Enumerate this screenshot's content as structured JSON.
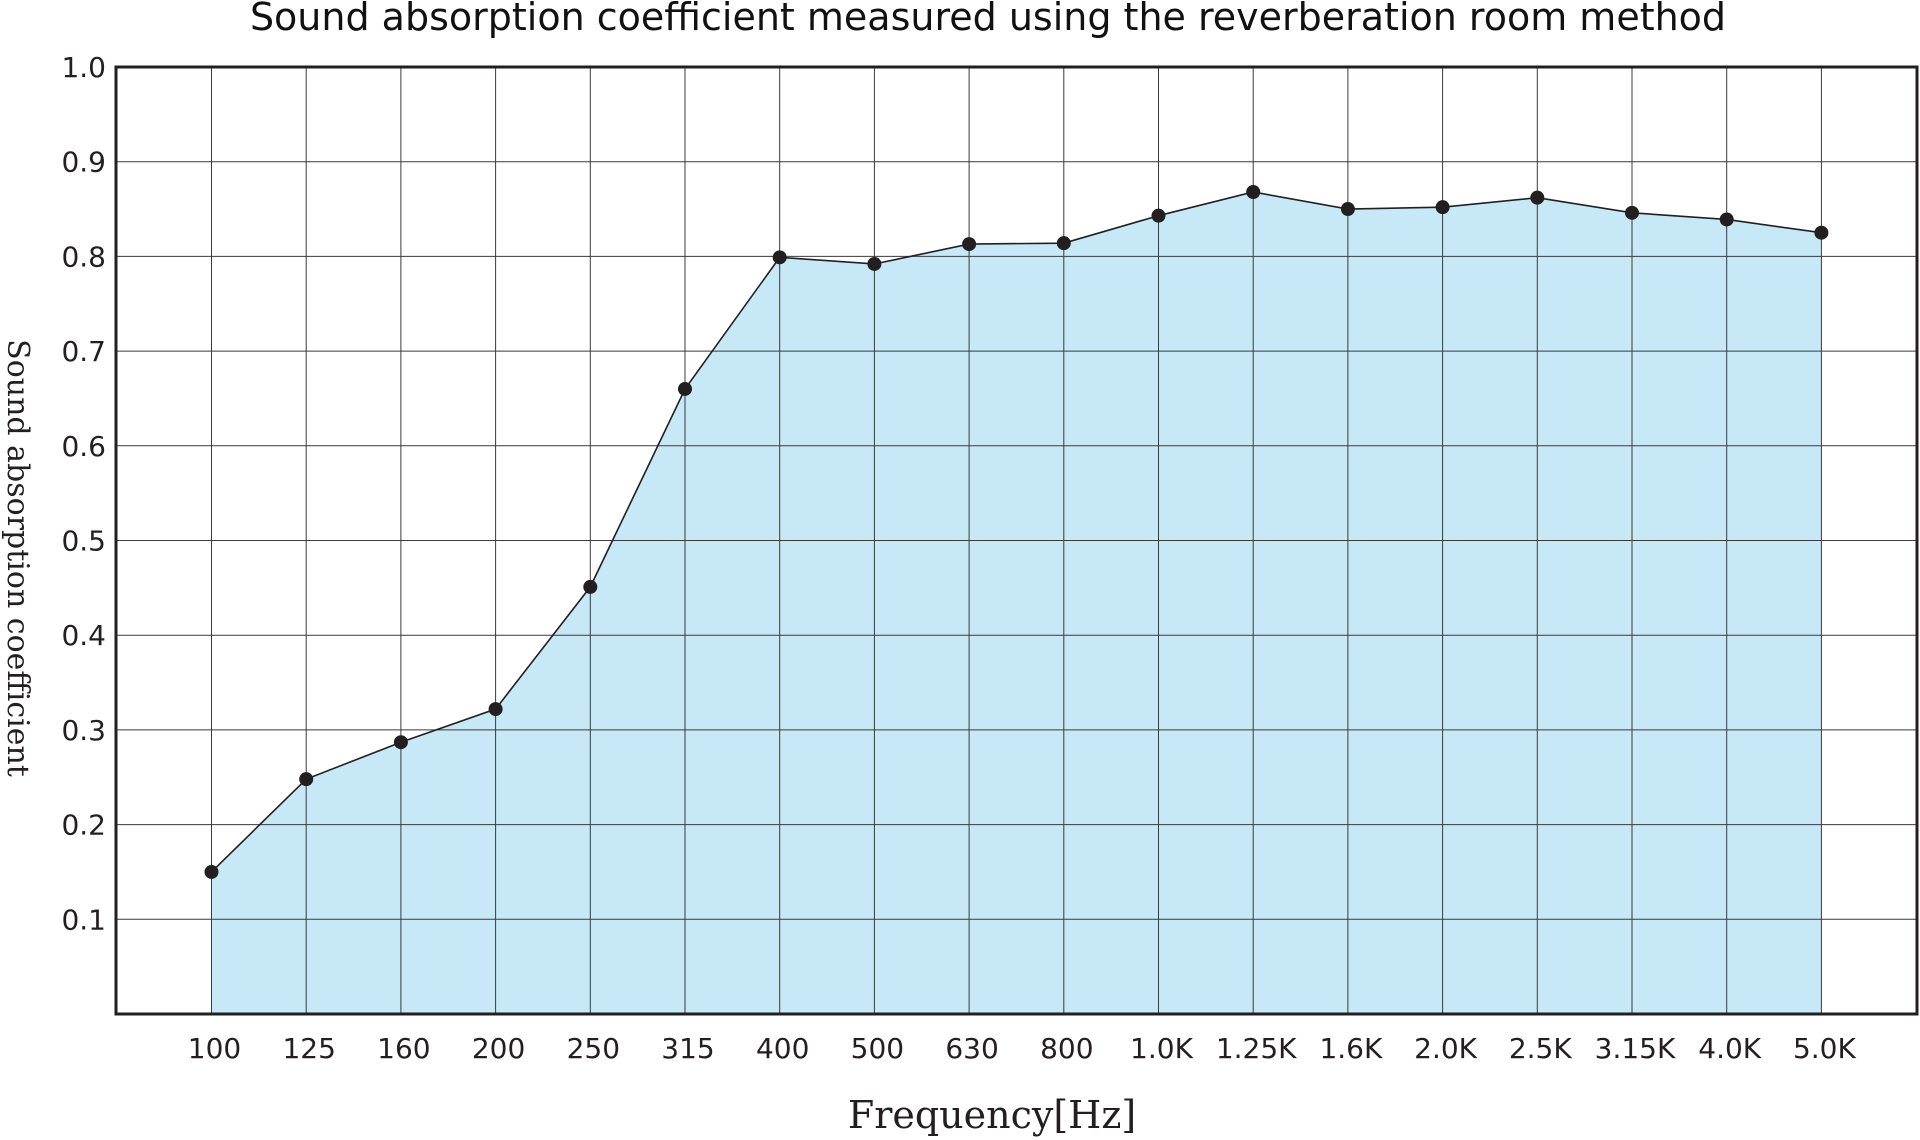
{
  "chart_data": {
    "type": "area",
    "title": "Sound absorption coefficient measured using the reverberation room method",
    "xlabel": "Frequency[Hz]",
    "ylabel": "Sound absorption coefficient",
    "categories": [
      "100",
      "125",
      "160",
      "200",
      "250",
      "315",
      "400",
      "500",
      "630",
      "800",
      "1.0K",
      "1.25K",
      "1.6K",
      "2.0K",
      "2.5K",
      "3.15K",
      "4.0K",
      "5.0K"
    ],
    "series": [
      {
        "values": [
          0.15,
          0.248,
          0.287,
          0.322,
          0.451,
          0.66,
          0.799,
          0.792,
          0.813,
          0.814,
          0.843,
          0.868,
          0.85,
          0.852,
          0.862,
          0.846,
          0.839,
          0.825
        ]
      }
    ],
    "ylim": [
      0,
      1.0
    ],
    "yticks": [
      "0.1",
      "0.2",
      "0.3",
      "0.4",
      "0.5",
      "0.6",
      "0.7",
      "0.8",
      "0.9",
      "1.0"
    ],
    "grid": true,
    "legend": "none",
    "colors": {
      "fill": "#c6e8f7",
      "line": "#231f20",
      "marker": "#231f20",
      "grid": "#3a3a3a",
      "frame": "#231f20"
    }
  }
}
